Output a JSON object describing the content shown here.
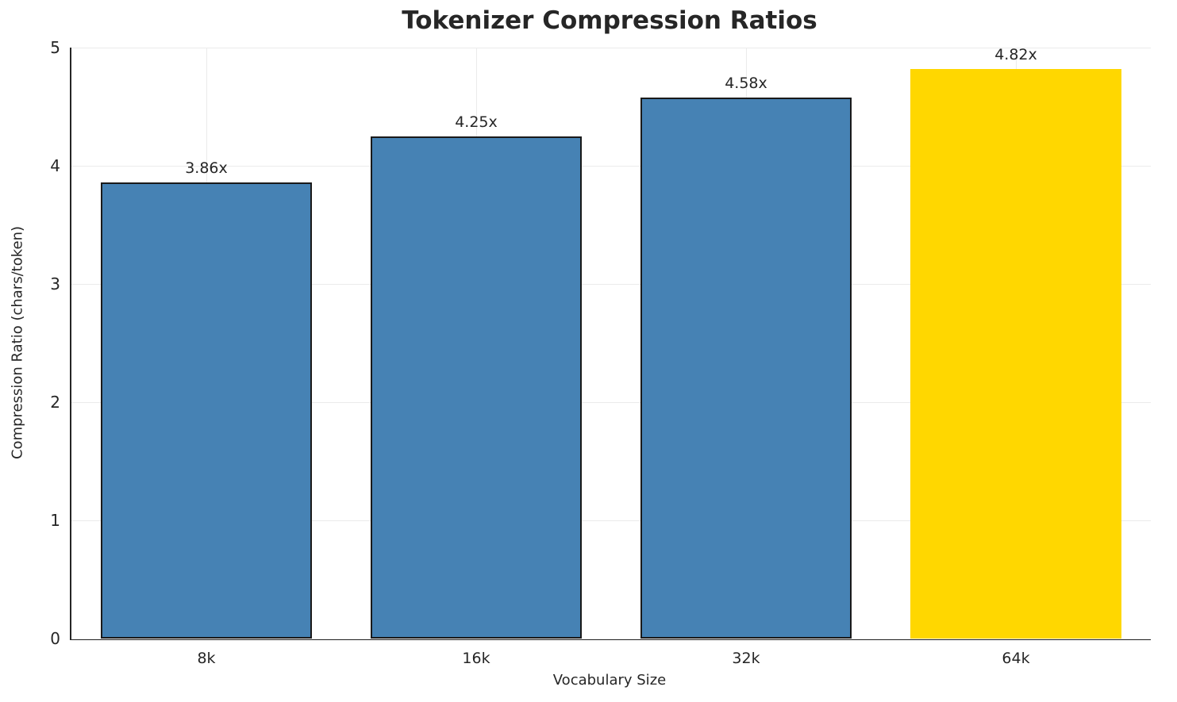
{
  "chart_data": {
    "type": "bar",
    "title": "Tokenizer Compression Ratios",
    "xlabel": "Vocabulary Size",
    "ylabel": "Compression Ratio (chars/token)",
    "categories": [
      "8k",
      "16k",
      "32k",
      "64k"
    ],
    "values": [
      3.86,
      4.25,
      4.58,
      4.82
    ],
    "bar_labels": [
      "3.86x",
      "4.25x",
      "4.58x",
      "4.82x"
    ],
    "bar_colors": [
      "#4682B4",
      "#4682B4",
      "#4682B4",
      "#FFD700"
    ],
    "bar_edge_colors": [
      "#1a1a1a",
      "#1a1a1a",
      "#1a1a1a",
      "#FFD700"
    ],
    "ylim": [
      0,
      5
    ],
    "yticks": [
      "0",
      "1",
      "2",
      "3",
      "4",
      "5"
    ],
    "bar_width_fraction": 0.78,
    "grid": true,
    "legend": "none",
    "background_color": "#ffffff",
    "grid_color": "#ebebeb",
    "text_color": "#262626"
  }
}
